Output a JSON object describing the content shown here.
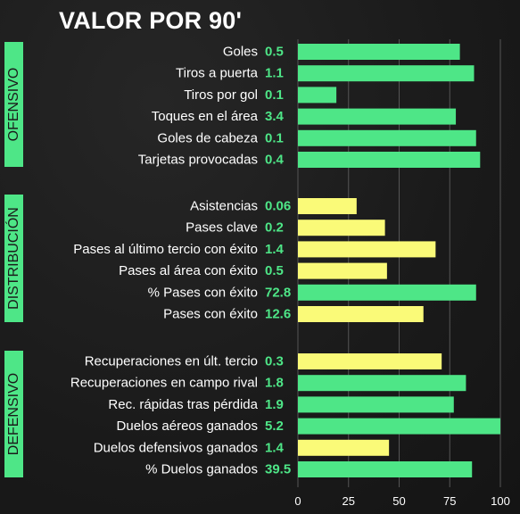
{
  "title": "VALOR POR 90'",
  "colors": {
    "green": "#4ee687",
    "yellow": "#fafa78",
    "grid": "#555555"
  },
  "chart_data": {
    "type": "bar",
    "orientation": "horizontal",
    "title": "VALOR POR 90'",
    "xlim": [
      0,
      100
    ],
    "xticks": [
      0,
      25,
      50,
      75,
      100
    ],
    "groups": [
      {
        "name": "OFENSIVO",
        "items": [
          {
            "label": "Goles",
            "value_label": "0.5",
            "percentile": 80,
            "color": "green"
          },
          {
            "label": "Tiros a puerta",
            "value_label": "1.1",
            "percentile": 87,
            "color": "green"
          },
          {
            "label": "Tiros por gol",
            "value_label": "0.1",
            "percentile": 19,
            "color": "green"
          },
          {
            "label": "Toques en el área",
            "value_label": "3.4",
            "percentile": 78,
            "color": "green"
          },
          {
            "label": "Goles de cabeza",
            "value_label": "0.1",
            "percentile": 88,
            "color": "green"
          },
          {
            "label": "Tarjetas provocadas",
            "value_label": "0.4",
            "percentile": 90,
            "color": "green"
          }
        ]
      },
      {
        "name": "DISTRIBUCIÓN",
        "items": [
          {
            "label": "Asistencias",
            "value_label": "0.06",
            "percentile": 29,
            "color": "yellow"
          },
          {
            "label": "Pases clave",
            "value_label": "0.2",
            "percentile": 43,
            "color": "yellow"
          },
          {
            "label": "Pases al último tercio con éxito",
            "value_label": "1.4",
            "percentile": 68,
            "color": "yellow"
          },
          {
            "label": "Pases al área con éxito",
            "value_label": "0.5",
            "percentile": 44,
            "color": "yellow"
          },
          {
            "label": "% Pases con éxito",
            "value_label": "72.8",
            "percentile": 88,
            "color": "green"
          },
          {
            "label": "Pases con éxito",
            "value_label": "12.6",
            "percentile": 62,
            "color": "yellow"
          }
        ]
      },
      {
        "name": "DEFENSIVO",
        "items": [
          {
            "label": "Recuperaciones en últ. tercio",
            "value_label": "0.3",
            "percentile": 71,
            "color": "yellow"
          },
          {
            "label": "Recuperaciones en campo rival",
            "value_label": "1.8",
            "percentile": 83,
            "color": "green"
          },
          {
            "label": "Rec. rápidas tras pérdida",
            "value_label": "1.9",
            "percentile": 77,
            "color": "green"
          },
          {
            "label": "Duelos aéreos ganados",
            "value_label": "5.2",
            "percentile": 100,
            "color": "green"
          },
          {
            "label": "Duelos defensivos ganados",
            "value_label": "1.4",
            "percentile": 45,
            "color": "yellow"
          },
          {
            "label": "% Duelos ganados",
            "value_label": "39.5",
            "percentile": 86,
            "color": "green"
          }
        ]
      }
    ]
  }
}
